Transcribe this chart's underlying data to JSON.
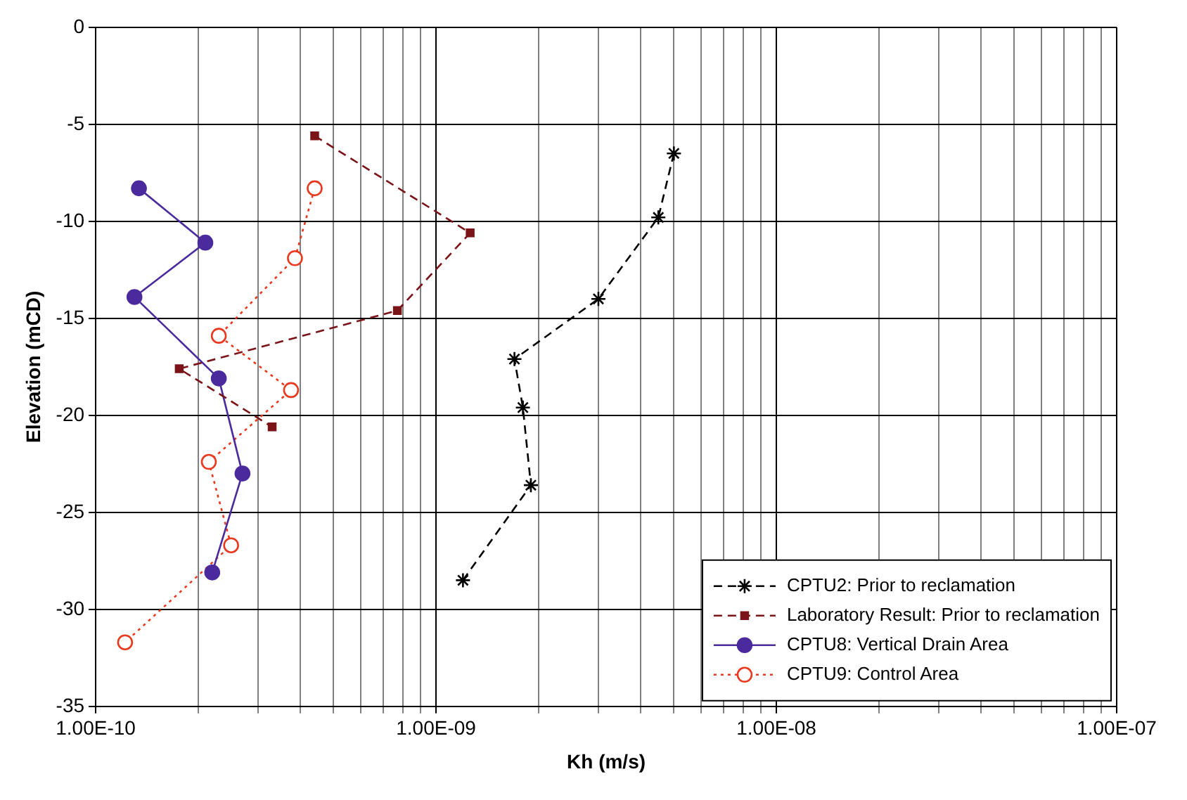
{
  "chart_data": {
    "type": "line",
    "xlabel": "Kh (m/s)",
    "ylabel": "Elevation (mCD)",
    "log": "x",
    "grid": true,
    "legend": "bottom right",
    "xlim": [
      1e-10,
      1e-07
    ],
    "xticks": [
      {
        "value": 1e-10,
        "label": "1.00E-10"
      },
      {
        "value": 2e-10,
        "label": null
      },
      {
        "value": 3e-10,
        "label": null
      },
      {
        "value": 4e-10,
        "label": null
      },
      {
        "value": 5e-10,
        "label": null
      },
      {
        "value": 6e-10,
        "label": null
      },
      {
        "value": 7e-10,
        "label": null
      },
      {
        "value": 8e-10,
        "label": null
      },
      {
        "value": 9e-10,
        "label": null
      },
      {
        "value": 1e-09,
        "label": "1.00E-09"
      },
      {
        "value": 2e-09,
        "label": null
      },
      {
        "value": 3e-09,
        "label": null
      },
      {
        "value": 4e-09,
        "label": null
      },
      {
        "value": 5e-09,
        "label": null
      },
      {
        "value": 6e-09,
        "label": null
      },
      {
        "value": 7e-09,
        "label": null
      },
      {
        "value": 8e-09,
        "label": null
      },
      {
        "value": 9e-09,
        "label": null
      },
      {
        "value": 1e-08,
        "label": "1.00E-08"
      },
      {
        "value": 2e-08,
        "label": null
      },
      {
        "value": 3e-08,
        "label": null
      },
      {
        "value": 4e-08,
        "label": null
      },
      {
        "value": 5e-08,
        "label": null
      },
      {
        "value": 6e-08,
        "label": null
      },
      {
        "value": 7e-08,
        "label": null
      },
      {
        "value": 8e-08,
        "label": null
      },
      {
        "value": 9e-08,
        "label": null
      },
      {
        "value": 1e-07,
        "label": "1.00E-07"
      }
    ],
    "ylim": [
      -35,
      0
    ],
    "yticks": [
      -35,
      -30,
      -25,
      -20,
      -15,
      -10,
      -5,
      0
    ],
    "series": [
      {
        "name": "CPTU2: Prior to reclamation",
        "color": "#000000",
        "marker": "cross",
        "line_style": "dashed",
        "x": [
          5e-09,
          4.5e-09,
          3e-09,
          1.7e-09,
          1.8e-09,
          1.9e-09,
          1.2e-09
        ],
        "values": [
          -6.5,
          -9.8,
          -14.0,
          -17.1,
          -19.6,
          -23.6,
          -28.5
        ]
      },
      {
        "name": "Laboratory Result: Prior to reclamation",
        "color": "#7a1418",
        "marker": "square",
        "line_style": "dashed",
        "x": [
          4.4e-10,
          1.26e-09,
          7.7e-10,
          1.76e-10,
          3.3e-10
        ],
        "values": [
          -5.6,
          -10.6,
          -14.6,
          -17.6,
          -20.6
        ]
      },
      {
        "name": "CPTU8: Vertical Drain Area",
        "color": "#4a2a9c",
        "marker": "circle",
        "line_style": "solid",
        "x": [
          1.34e-10,
          2.1e-10,
          1.3e-10,
          2.3e-10,
          2.7e-10,
          2.2e-10
        ],
        "values": [
          -8.3,
          -11.1,
          -13.9,
          -18.1,
          -23.0,
          -28.1
        ]
      },
      {
        "name": "CPTU9: Control Area",
        "color": "#e8391f",
        "marker": "circle-open",
        "line_style": "dotted",
        "x": [
          4.4e-10,
          3.85e-10,
          2.3e-10,
          3.75e-10,
          2.15e-10,
          2.5e-10,
          1.22e-10
        ],
        "values": [
          -8.3,
          -11.9,
          -15.9,
          -18.7,
          -22.4,
          -26.7,
          -31.7
        ]
      }
    ]
  }
}
